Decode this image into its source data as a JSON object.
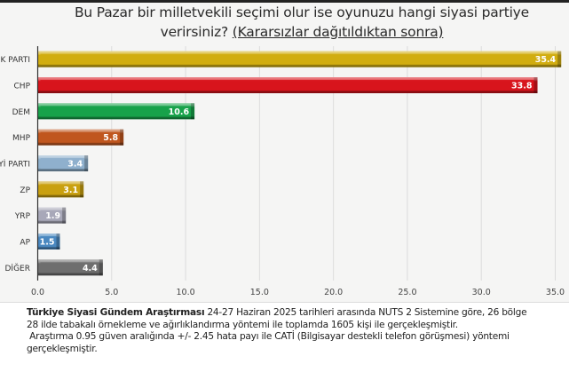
{
  "title": {
    "line1": "Bu Pazar bir milletvekili seçimi olur ise oyunuzu hangi siyasi partiye",
    "line2_plain": "verirsiniz? ",
    "line2_underlined": "(Kararsızlar dağıtıldıktan sonra)"
  },
  "chart_data": {
    "type": "bar",
    "orientation": "horizontal",
    "categories": [
      "K PARTI",
      "CHP",
      "DEM",
      "MHP",
      "Yİ PARTI",
      "ZP",
      "YRP",
      "AP",
      "DİĞER"
    ],
    "values": [
      35.4,
      33.8,
      10.6,
      5.8,
      3.4,
      3.1,
      1.9,
      1.5,
      4.4
    ],
    "data_labels": [
      "35.4",
      "33.8",
      "10.6",
      "5.8",
      "3.4",
      "3.1",
      "1.9",
      "1.5",
      "4.4"
    ],
    "colors": [
      "#d1ad10",
      "#d8141c",
      "#18a24a",
      "#c0561e",
      "#8fb0cc",
      "#c9a010",
      "#a8a8b8",
      "#4a88c0",
      "#6e6e6e"
    ],
    "xlim": [
      0,
      35
    ],
    "xticks": [
      "0.0",
      "5.0",
      "10.0",
      "15.0",
      "20.0",
      "25.0",
      "30.0",
      "35.0"
    ],
    "grid": true
  },
  "footnote": {
    "bold": "Türkiye Siyasi Gündem Araştırması",
    "line1": " 24-27 Haziran 2025 tarihleri arasında NUTS 2 Sistemine göre, 26 bölge",
    "line2": "28 ilde tabakalı örnekleme ve ağırlıklandırma yöntemi ile toplamda 1605 kişi ile gerçekleşmiştir.",
    "line3": " Araştırma 0.95 güven aralığında +/- 2.45 hata payı ile CATİ (Bilgisayar destekli telefon görüşmesi) yöntemi",
    "line4": "gerçekleşmiştir."
  }
}
